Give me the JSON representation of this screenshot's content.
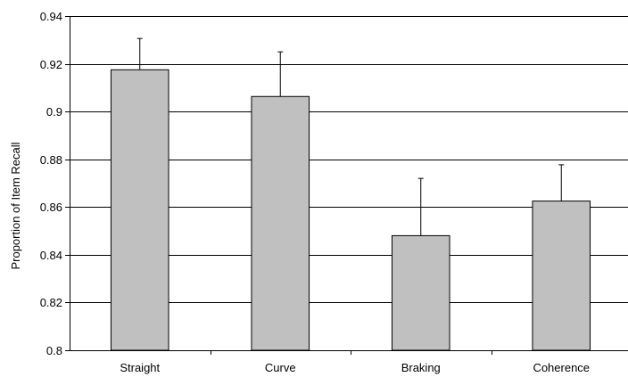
{
  "chart_data": {
    "type": "bar",
    "categories": [
      "Straight",
      "Curve",
      "Braking",
      "Coherence"
    ],
    "series": [
      {
        "values": [
          0.9175,
          0.9063,
          0.848,
          0.8625
        ],
        "error_upper": [
          0.0131,
          0.0187,
          0.024,
          0.0152
        ]
      }
    ],
    "title": "",
    "xlabel": "",
    "ylabel": "Proportion of Item Recall",
    "ylim": [
      0.8,
      0.94
    ],
    "yticks": [
      0.8,
      0.82,
      0.84,
      0.86,
      0.88,
      0.9,
      0.92,
      0.94
    ],
    "ytick_labels": [
      "0.8",
      "0.82",
      "0.84",
      "0.86",
      "0.88",
      "0.9",
      "0.92",
      "0.94"
    ],
    "grid": true,
    "legend": "none",
    "bar_color": "#c0c0c0",
    "bar_edge_color": "#000000",
    "grid_color": "#000000"
  }
}
